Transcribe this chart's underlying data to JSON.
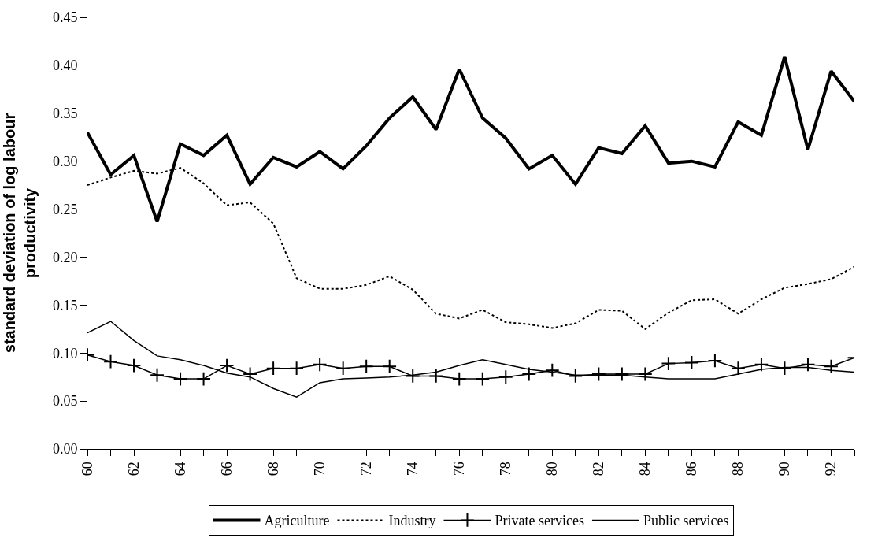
{
  "chart_data": {
    "type": "line",
    "ylabel": "standard deviation of log labour productivity",
    "x": [
      60,
      61,
      62,
      63,
      64,
      65,
      66,
      67,
      68,
      69,
      70,
      71,
      72,
      73,
      74,
      75,
      76,
      77,
      78,
      79,
      80,
      81,
      82,
      83,
      84,
      85,
      86,
      87,
      88,
      89,
      90,
      91,
      92,
      93
    ],
    "series": [
      {
        "name": "Agriculture",
        "color": "#000000",
        "line_style": "solid",
        "marker": "none",
        "values": [
          0.33,
          0.286,
          0.306,
          0.237,
          0.318,
          0.306,
          0.327,
          0.276,
          0.304,
          0.294,
          0.31,
          0.292,
          0.316,
          0.345,
          0.367,
          0.333,
          0.396,
          0.345,
          0.324,
          0.292,
          0.306,
          0.276,
          0.314,
          0.308,
          0.337,
          0.298,
          0.3,
          0.294,
          0.341,
          0.327,
          0.409,
          0.312,
          0.394,
          0.362
        ]
      },
      {
        "name": "Industry",
        "color": "#000000",
        "line_style": "dotted",
        "marker": "none",
        "values": [
          0.275,
          0.283,
          0.29,
          0.287,
          0.293,
          0.277,
          0.254,
          0.257,
          0.235,
          0.178,
          0.167,
          0.167,
          0.171,
          0.18,
          0.166,
          0.141,
          0.136,
          0.145,
          0.132,
          0.13,
          0.126,
          0.131,
          0.145,
          0.144,
          0.125,
          0.142,
          0.155,
          0.156,
          0.141,
          0.156,
          0.168,
          0.172,
          0.177,
          0.19
        ]
      },
      {
        "name": "Private services",
        "color": "#000000",
        "line_style": "solid",
        "marker": "cross",
        "values": [
          0.098,
          0.091,
          0.087,
          0.077,
          0.073,
          0.073,
          0.087,
          0.078,
          0.084,
          0.084,
          0.088,
          0.084,
          0.086,
          0.086,
          0.076,
          0.076,
          0.073,
          0.073,
          0.075,
          0.078,
          0.082,
          0.076,
          0.078,
          0.078,
          0.078,
          0.089,
          0.09,
          0.092,
          0.084,
          0.088,
          0.084,
          0.088,
          0.086,
          0.095
        ]
      },
      {
        "name": "Public services",
        "color": "#000000",
        "line_style": "solid",
        "marker": "none",
        "values": [
          0.121,
          0.133,
          0.113,
          0.097,
          0.093,
          0.087,
          0.079,
          0.075,
          0.063,
          0.054,
          0.069,
          0.073,
          0.074,
          0.075,
          0.077,
          0.08,
          0.087,
          0.093,
          0.088,
          0.083,
          0.08,
          0.077,
          0.077,
          0.077,
          0.075,
          0.073,
          0.073,
          0.073,
          0.078,
          0.083,
          0.085,
          0.085,
          0.082,
          0.08
        ]
      }
    ],
    "xlim": [
      60,
      93
    ],
    "xticks": [
      60,
      {
        "value": 61,
        "label": null
      },
      62,
      {
        "value": 63,
        "label": null
      },
      64,
      {
        "value": 65,
        "label": null
      },
      66,
      {
        "value": 67,
        "label": null
      },
      68,
      {
        "value": 69,
        "label": null
      },
      70,
      {
        "value": 71,
        "label": null
      },
      72,
      {
        "value": 73,
        "label": null
      },
      74,
      {
        "value": 75,
        "label": null
      },
      76,
      {
        "value": 77,
        "label": null
      },
      78,
      {
        "value": 79,
        "label": null
      },
      80,
      {
        "value": 81,
        "label": null
      },
      82,
      {
        "value": 83,
        "label": null
      },
      84,
      {
        "value": 85,
        "label": null
      },
      86,
      {
        "value": 87,
        "label": null
      },
      88,
      {
        "value": 89,
        "label": null
      },
      90,
      {
        "value": 91,
        "label": null
      },
      92,
      {
        "value": 93,
        "label": null
      }
    ],
    "ylim": [
      0,
      0.45
    ],
    "yticks": [
      {
        "value": 0,
        "label": "0.00"
      },
      {
        "value": 0.05,
        "label": "0.05"
      },
      {
        "value": 0.1,
        "label": "0.10"
      },
      {
        "value": 0.15,
        "label": "0.15"
      },
      {
        "value": 0.2,
        "label": "0.20"
      },
      {
        "value": 0.25,
        "label": "0.25"
      },
      {
        "value": 0.3,
        "label": "0.30"
      },
      {
        "value": 0.35,
        "label": "0.35"
      },
      {
        "value": 0.4,
        "label": "0.40"
      },
      {
        "value": 0.45,
        "label": "0.45"
      }
    ],
    "legend": "bottom"
  }
}
